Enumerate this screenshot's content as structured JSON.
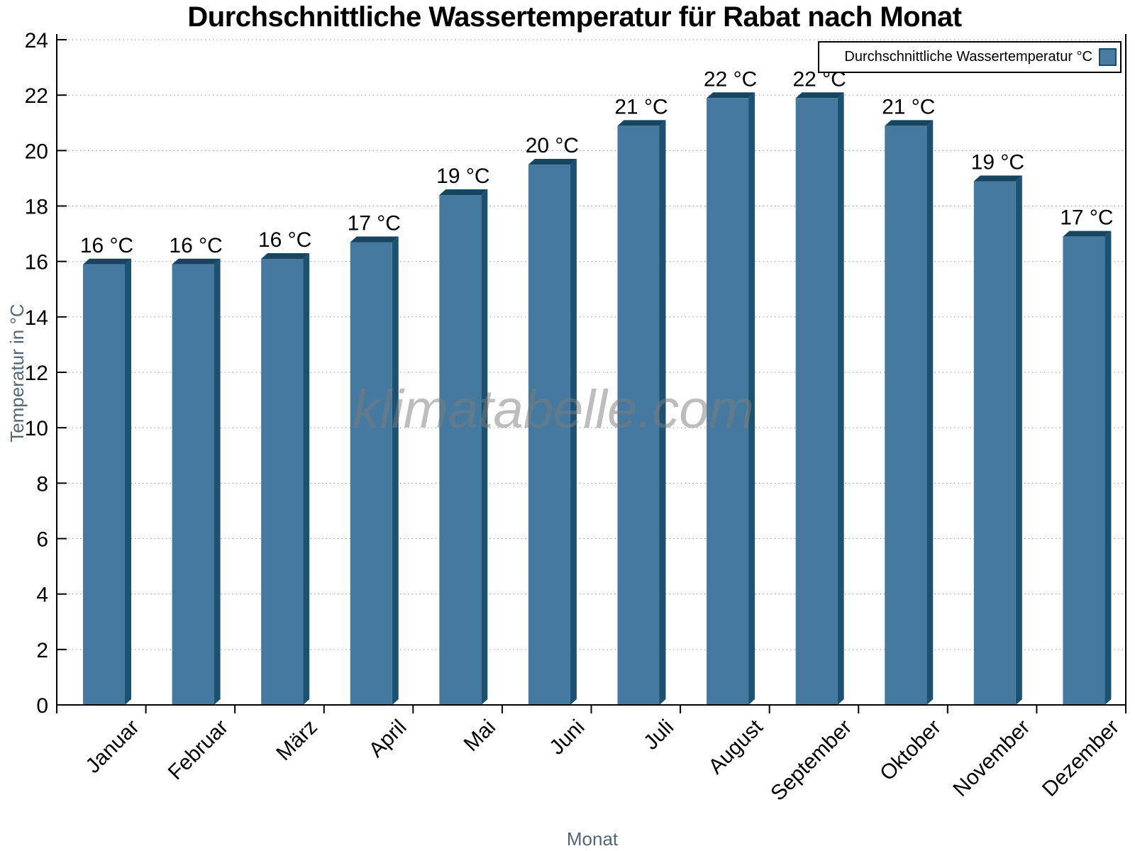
{
  "chart_data": {
    "type": "bar",
    "title": "Durchschnittliche Wassertemperatur für Rabat nach Monat",
    "xlabel": "Monat",
    "ylabel": "Temperatur in °C",
    "categories": [
      "Januar",
      "Februar",
      "März",
      "April",
      "Mai",
      "Juni",
      "Juli",
      "August",
      "September",
      "Oktober",
      "November",
      "Dezember"
    ],
    "series": [
      {
        "name": "Durchschnittliche Wassertemperatur °C",
        "values": [
          16.1,
          16.1,
          16.3,
          16.9,
          18.6,
          19.7,
          21.1,
          22.1,
          22.1,
          21.1,
          19.1,
          17.1
        ]
      }
    ],
    "bar_labels": [
      "16 °C",
      "16 °C",
      "16 °C",
      "17 °C",
      "19 °C",
      "20 °C",
      "21 °C",
      "22 °C",
      "22 °C",
      "21 °C",
      "19 °C",
      "17 °C"
    ],
    "ylim": [
      0,
      24
    ],
    "yticks": [
      0,
      2,
      4,
      6,
      8,
      10,
      12,
      14,
      16,
      18,
      20,
      22,
      24
    ],
    "grid": "horizontal-dotted",
    "legend_position": "top-right"
  },
  "legend": {
    "label": "Durchschnittliche Wassertemperatur °C"
  },
  "watermark": "klimatabelle.com",
  "colors": {
    "bar_front": "#45799F",
    "bar_top": "#17445F",
    "bar_side": "#1C5170",
    "legend_swatch": "#4A7CA3",
    "swatch_border": "#1D4A66",
    "grid_line": "#999999",
    "axis": "#000000",
    "axis_title": "#546673",
    "watermark_gray": "#7D7D7D"
  }
}
